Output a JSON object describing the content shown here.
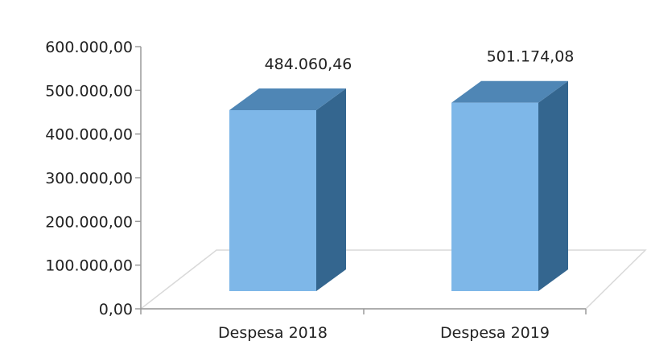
{
  "chart_data": {
    "type": "bar",
    "style": "3d-column",
    "categories": [
      "Despesa 2018",
      "Despesa 2019"
    ],
    "values": [
      484060.46,
      501174.08
    ],
    "data_labels": [
      "484.060,46",
      "501.174,08"
    ],
    "ylim": [
      0,
      600000
    ],
    "yticks": [
      0,
      100000,
      200000,
      300000,
      400000,
      500000,
      600000
    ],
    "ytick_labels": [
      "0,00",
      "100.000,00",
      "200.000,00",
      "300.000,00",
      "400.000,00",
      "500.000,00",
      "600.000,00"
    ],
    "title": "",
    "xlabel": "",
    "ylabel": "",
    "grid": false,
    "legend": "none",
    "colors": {
      "front": "#7eb7e8",
      "top": "#4f86b5",
      "side": "#34668f",
      "floor": "#d9d9d9",
      "axis": "#9a9a9a"
    }
  }
}
